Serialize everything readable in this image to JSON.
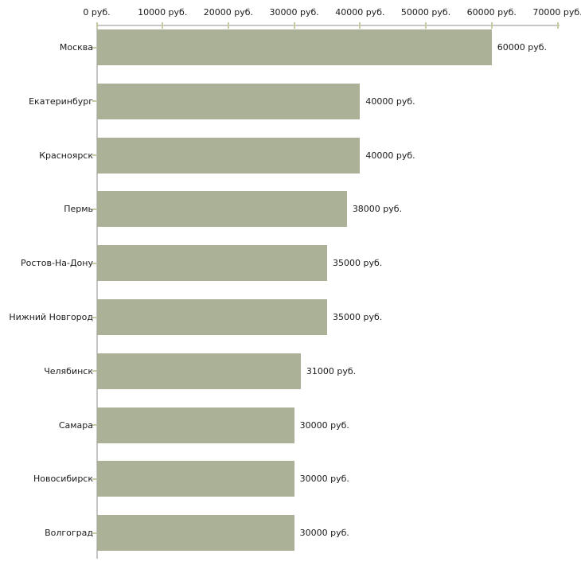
{
  "chart_data": {
    "type": "bar",
    "orientation": "horizontal",
    "categories": [
      "Москва",
      "Екатеринбург",
      "Красноярск",
      "Пермь",
      "Ростов-На-Дону",
      "Нижний Новгород",
      "Челябинск",
      "Самара",
      "Новосибирск",
      "Волгоград"
    ],
    "values": [
      60000,
      40000,
      40000,
      38000,
      35000,
      35000,
      31000,
      30000,
      30000,
      30000
    ],
    "value_labels": [
      "60000 руб.",
      "40000 руб.",
      "40000 руб.",
      "38000 руб.",
      "35000 руб.",
      "35000 руб.",
      "31000 руб.",
      "30000 руб.",
      "30000 руб.",
      "30000 руб."
    ],
    "x_axis": {
      "position": "top",
      "xlim": [
        0,
        70000
      ],
      "tick_values": [
        0,
        10000,
        20000,
        30000,
        40000,
        50000,
        60000,
        70000
      ],
      "tick_labels": [
        "0 руб.",
        "10000 руб.",
        "20000 руб.",
        "30000 руб.",
        "40000 руб.",
        "50000 руб.",
        "60000 руб.",
        "70000 руб."
      ]
    },
    "ylabel": "",
    "xlabel": "",
    "grid": false,
    "legend": false,
    "colors": {
      "bar": "#abb197",
      "axis_line": "#c6c6c6",
      "tick_mark": "#c9cb9f",
      "text": "#1a1a1a",
      "background": "#ffffff"
    }
  }
}
